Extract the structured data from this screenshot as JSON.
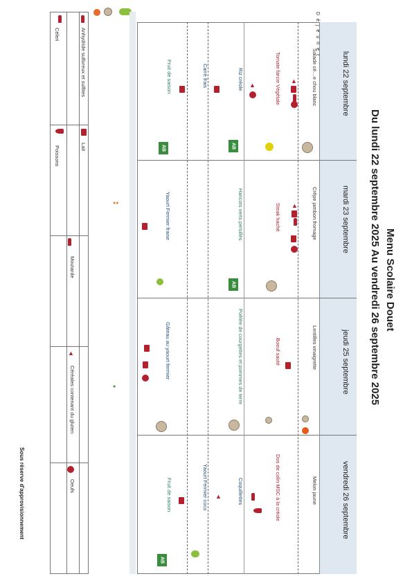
{
  "title": {
    "line1": "Menu Scolaire Douet",
    "line2": "Du lundi 22 septembre 2025 Au vendredi 26 septembre 2025"
  },
  "meal_label": "Déjeuner",
  "days": [
    {
      "name": "lundi 22 septembre",
      "dishes": [
        {
          "text": "Salade cé…e chou blanc",
          "color": "#333333"
        },
        {
          "text": "Tomate farcie Végétale",
          "color": "#b3202e"
        },
        {
          "text": "Riz créole",
          "color": "#1f4e79"
        },
        {
          "text": "Carré frais",
          "color": "#1f4e79"
        },
        {
          "text": "Fruit de saison",
          "color": "#2e7d5b"
        }
      ]
    },
    {
      "name": "mardi 23 septembre",
      "dishes": [
        {
          "text": "Crêpe jambon fromage",
          "color": "#333333"
        },
        {
          "text": "Steak haché",
          "color": "#b3202e"
        },
        {
          "text": "Haricots verts persillés",
          "color": "#2e7d5b"
        },
        {
          "text": "Yaourt Fermier fraise",
          "color": "#1f4e79"
        }
      ]
    },
    {
      "name": "jeudi 25 septembre",
      "dishes": [
        {
          "text": "Lentilles vinaigrette",
          "color": "#333333"
        },
        {
          "text": "Boeuf sauté",
          "color": "#b3202e"
        },
        {
          "text": "Poêlée de courgettes et pommes de terre",
          "color": "#2e7d5b"
        },
        {
          "text": "Gâteau au yaourt fermier",
          "color": "#1f4e79"
        }
      ]
    },
    {
      "name": "vendredi 26 septembre",
      "dishes": [
        {
          "text": "Melon jaune",
          "color": "#333333"
        },
        {
          "text": "Dos de colin MSC à la créole",
          "color": "#b3202e"
        },
        {
          "text": "Coquillettes",
          "color": "#1f4e79"
        },
        {
          "text": "Yaourt Fermier coco",
          "color": "#1f4e79"
        },
        {
          "text": "Fruit de saison",
          "color": "#2e7d5b"
        }
      ]
    }
  ],
  "legend": {
    "row1": [
      "Céleri",
      "Poissons",
      "Moutarde",
      "Oeufs"
    ],
    "row2": [
      "Anhydride sulfureux et sulfites",
      "Lait",
      "Céréales contenant du gluten"
    ]
  },
  "footer": "Sous réserve d'approvisionnement",
  "badges": {
    "organic": "AB"
  }
}
